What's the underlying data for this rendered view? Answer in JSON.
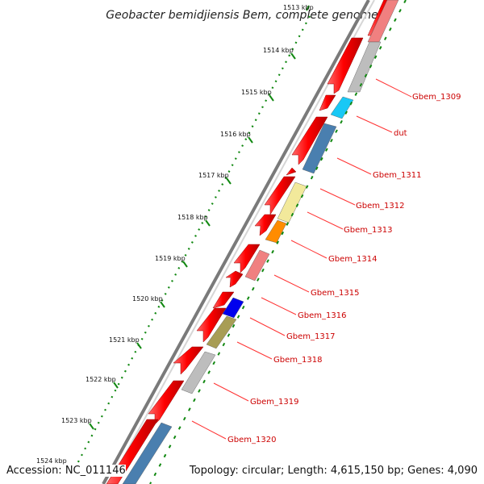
{
  "title": "Geobacter bemidjiensis Bem, complete genome",
  "footer": {
    "accession": "Accession: NC_011146",
    "topology": "Topology: circular; Length: 4,615,150 bp; Genes: 4,090"
  },
  "kbp_ticks": [
    "1513 kbp",
    "1514 kbp",
    "1515 kbp",
    "1516 kbp",
    "1517 kbp",
    "1518 kbp",
    "1519 kbp",
    "1520 kbp",
    "1521 kbp",
    "1522 kbp",
    "1523 kbp",
    "1524 kbp"
  ],
  "gene_labels": [
    "Gbem_1309",
    "dut",
    "Gbem_1311",
    "Gbem_1312",
    "Gbem_1313",
    "Gbem_1314",
    "Gbem_1315",
    "Gbem_1316",
    "Gbem_1317",
    "Gbem_1318",
    "Gbem_1319",
    "Gbem_1320"
  ],
  "colors": {
    "backbone": "#8c8c8c",
    "forward_gene": "#ee0000",
    "kbp_tick": "#118811",
    "gene_label": "#cc0000"
  }
}
